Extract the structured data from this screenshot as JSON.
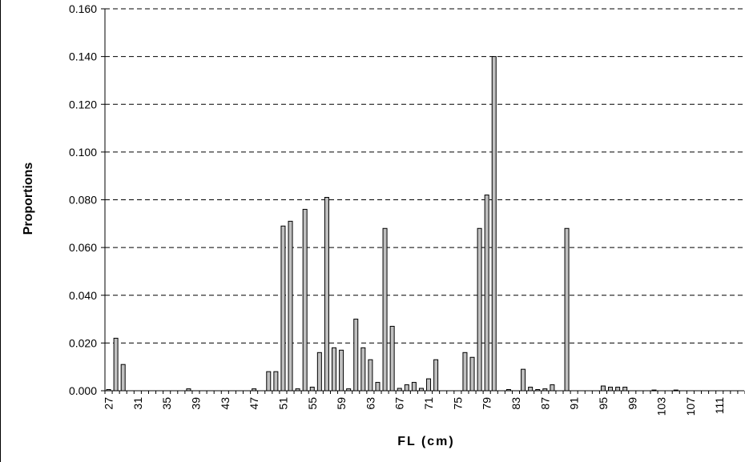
{
  "chart_data": {
    "type": "bar",
    "title": "",
    "xlabel": "FL (cm)",
    "ylabel": "Proportions",
    "ylim": [
      0,
      0.16
    ],
    "y_ticks": [
      "0.000",
      "0.020",
      "0.040",
      "0.060",
      "0.080",
      "0.100",
      "0.120",
      "0.140",
      "0.160"
    ],
    "grid": "dashed horizontal",
    "categories": [
      27,
      28,
      29,
      30,
      31,
      32,
      33,
      34,
      35,
      36,
      37,
      38,
      39,
      40,
      41,
      42,
      43,
      44,
      45,
      46,
      47,
      48,
      49,
      50,
      51,
      52,
      53,
      54,
      55,
      56,
      57,
      58,
      59,
      60,
      61,
      62,
      63,
      64,
      65,
      66,
      67,
      68,
      69,
      70,
      71,
      72,
      73,
      74,
      75,
      76,
      77,
      78,
      79,
      80,
      81,
      82,
      83,
      84,
      85,
      86,
      87,
      88,
      89,
      90,
      91,
      92,
      93,
      94,
      95,
      96,
      97,
      98,
      99,
      100,
      101,
      102,
      103,
      104,
      105,
      106,
      107,
      108,
      109,
      110,
      111,
      112,
      113,
      114
    ],
    "x_tick_labels": [
      "27",
      "31",
      "35",
      "39",
      "43",
      "47",
      "51",
      "55",
      "59",
      "63",
      "67",
      "71",
      "75",
      "79",
      "83",
      "87",
      "91",
      "95",
      "99",
      "103",
      "107",
      "111"
    ],
    "values": [
      0.0005,
      0.022,
      0.011,
      0,
      0,
      0,
      0,
      0,
      0,
      0,
      0,
      0.0008,
      0,
      0,
      0,
      0,
      0,
      0,
      0,
      0,
      0.0008,
      0,
      0.008,
      0.008,
      0.069,
      0.071,
      0.0008,
      0.076,
      0.0015,
      0.016,
      0.081,
      0.018,
      0.017,
      0.0008,
      0.03,
      0.018,
      0.013,
      0.0035,
      0.068,
      0.027,
      0.001,
      0.0025,
      0.0035,
      0.001,
      0.005,
      0.013,
      0,
      0,
      0,
      0.016,
      0.014,
      0.068,
      0.082,
      0.14,
      0,
      0.0005,
      0,
      0.009,
      0.0015,
      0.0005,
      0.0008,
      0.0025,
      0,
      0.068,
      0,
      0,
      0,
      0,
      0.002,
      0.0015,
      0.0015,
      0.0015,
      0,
      0,
      0,
      0.0003,
      0,
      0,
      0.0003,
      0,
      0,
      0,
      0,
      0,
      0,
      0,
      0,
      0
    ],
    "colors": {
      "bar_fill": "#c0c0c0",
      "bar_stroke": "#000000",
      "grid": "#000000"
    }
  }
}
